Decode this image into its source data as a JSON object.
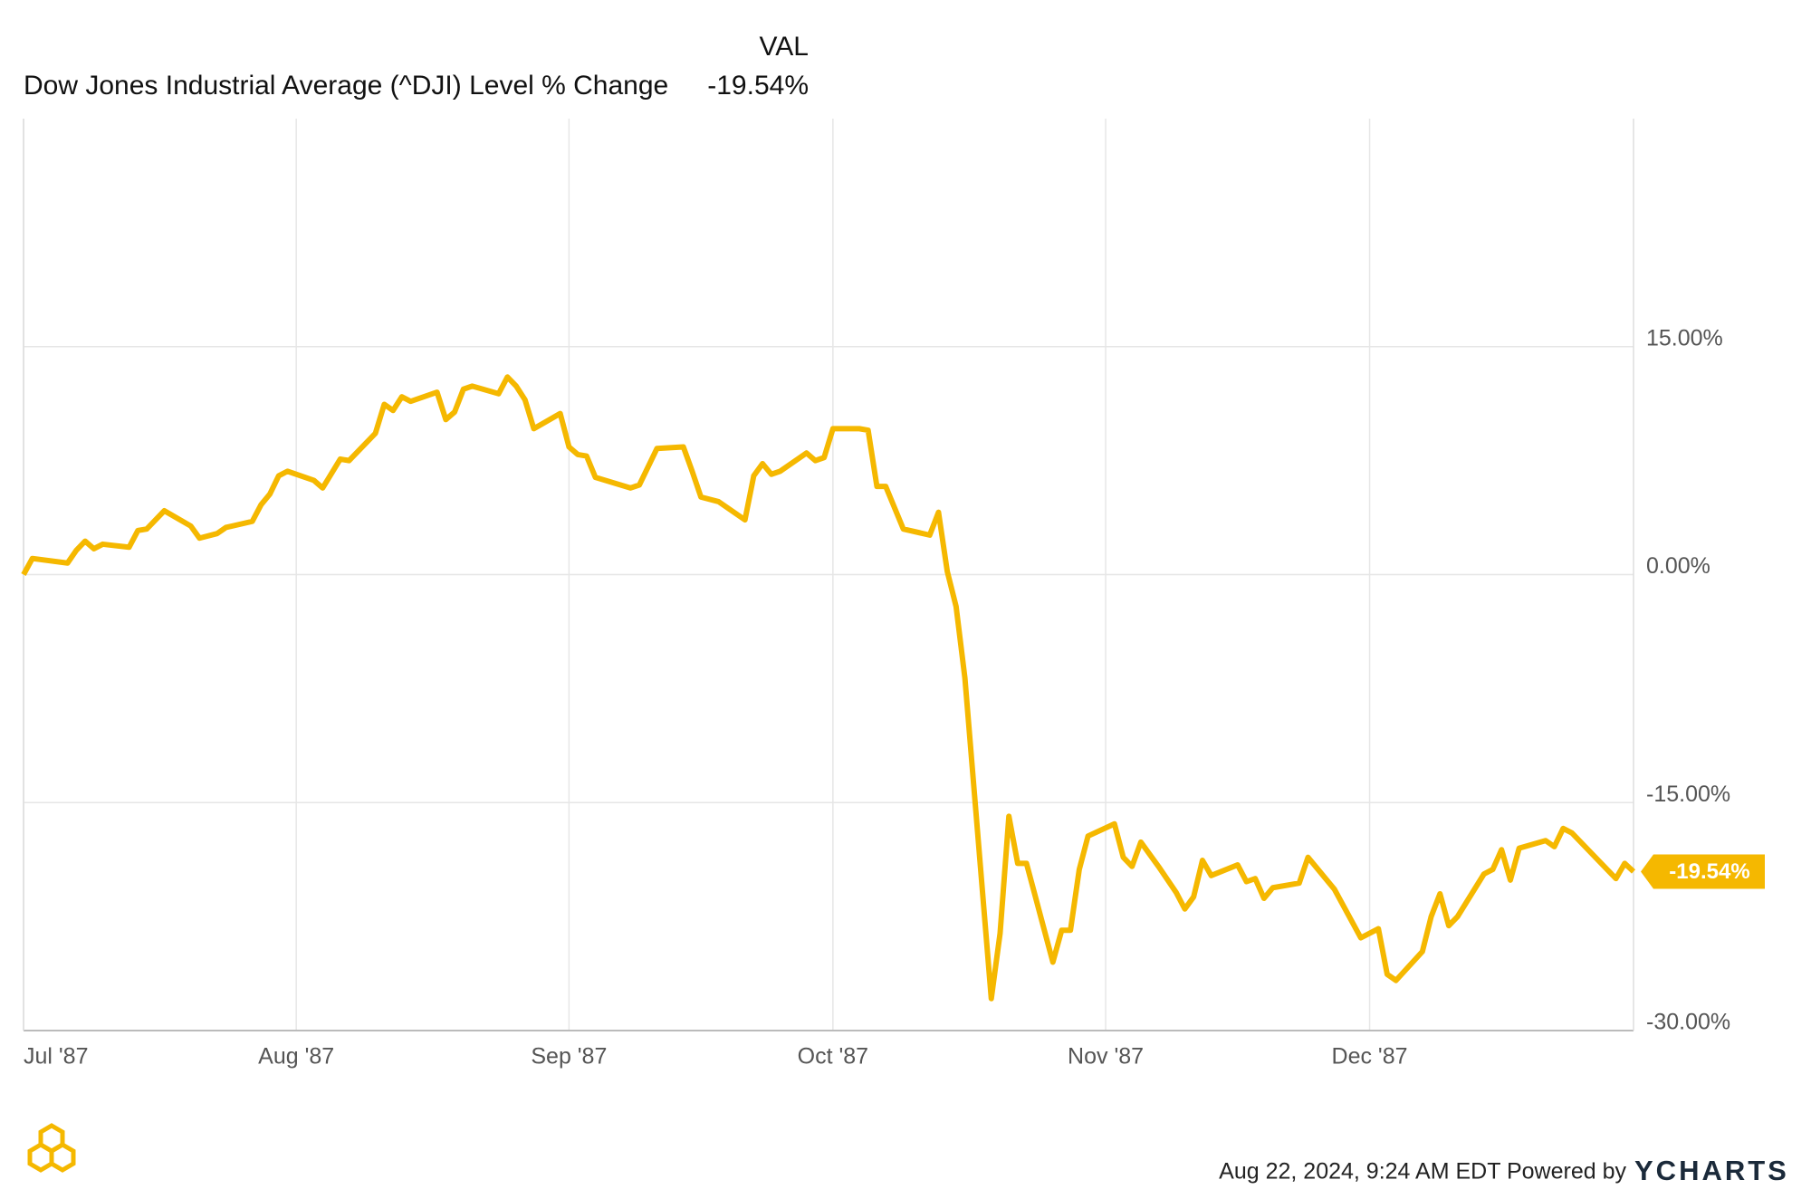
{
  "chart_data": {
    "type": "line",
    "title": "VAL",
    "xticks": [
      {
        "value": 0,
        "label": "Jul '87"
      },
      {
        "value": 31,
        "label": "Aug '87"
      },
      {
        "value": 62,
        "label": "Sep '87"
      },
      {
        "value": 92,
        "label": "Oct '87"
      },
      {
        "value": 123,
        "label": "Nov '87"
      },
      {
        "value": 153,
        "label": "Dec '87"
      }
    ],
    "xlim": [
      0,
      183
    ],
    "ylim": [
      -30,
      30
    ],
    "yticks": [
      {
        "value": -30,
        "label": "-30.00%"
      },
      {
        "value": -15,
        "label": "-15.00%"
      },
      {
        "value": 0,
        "label": "0.00%"
      },
      {
        "value": 15,
        "label": "15.00%"
      }
    ],
    "grid": true,
    "x": [
      0,
      1,
      5,
      6,
      7,
      8,
      9,
      12,
      13,
      14,
      16,
      19,
      20,
      22,
      23,
      26,
      27,
      28,
      29,
      30,
      33,
      34,
      36,
      37,
      40,
      41,
      42,
      43,
      44,
      47,
      48,
      49,
      50,
      51,
      54,
      55,
      56,
      57,
      58,
      61,
      62,
      63,
      64,
      65,
      69,
      70,
      72,
      75,
      76,
      77,
      79,
      82,
      83,
      84,
      85,
      86,
      89,
      90,
      91,
      92,
      95,
      96,
      97,
      98,
      100,
      103,
      104,
      105,
      106,
      107,
      110,
      111,
      112,
      113,
      114,
      117,
      118,
      119,
      120,
      121,
      124,
      125,
      126,
      127,
      129,
      131,
      132,
      133,
      134,
      135,
      138,
      139,
      140,
      141,
      142,
      145,
      146,
      149,
      152,
      154,
      155,
      156,
      159,
      160,
      161,
      162,
      163,
      166,
      167,
      168,
      169,
      170,
      173,
      174,
      175,
      176,
      181,
      182,
      183
    ],
    "series": [
      {
        "name": "Dow Jones Industrial Average (^DJI) Level % Change",
        "color": "#f5b800",
        "values": [
          0,
          1.06,
          0.76,
          1.6,
          2.2,
          1.7,
          2.0,
          1.8,
          2.9,
          3.0,
          4.2,
          3.2,
          2.4,
          2.7,
          3.1,
          3.5,
          4.6,
          5.3,
          6.5,
          6.8,
          6.2,
          5.7,
          7.6,
          7.5,
          9.3,
          11.2,
          10.8,
          11.7,
          11.4,
          12.0,
          10.2,
          10.7,
          12.2,
          12.4,
          11.9,
          13.0,
          12.4,
          11.5,
          9.6,
          10.6,
          8.4,
          7.9,
          7.8,
          6.4,
          5.7,
          5.9,
          8.3,
          8.4,
          6.8,
          5.1,
          4.8,
          3.6,
          6.5,
          7.3,
          6.6,
          6.8,
          8.0,
          7.5,
          7.7,
          9.6,
          9.6,
          9.5,
          5.8,
          5.8,
          3.0,
          2.6,
          4.1,
          0.2,
          -2.1,
          -6.8,
          -27.9,
          -23.6,
          -15.9,
          -19.0,
          -19.0,
          -25.5,
          -23.4,
          -23.4,
          -19.4,
          -17.2,
          -16.4,
          -18.6,
          -19.2,
          -17.6,
          -19.2,
          -20.9,
          -22.0,
          -21.2,
          -18.8,
          -19.8,
          -19.1,
          -20.2,
          -20.0,
          -21.3,
          -20.6,
          -20.3,
          -18.6,
          -20.7,
          -23.9,
          -23.3,
          -26.3,
          -26.7,
          -24.8,
          -22.5,
          -21.0,
          -23.1,
          -22.5,
          -19.7,
          -19.4,
          -18.1,
          -20.1,
          -18.0,
          -17.5,
          -17.9,
          -16.7,
          -17.0,
          -20.0,
          -19.0,
          -19.54
        ],
        "value_labels": [
          null,
          null,
          null,
          null,
          null,
          null,
          null,
          null,
          null,
          null,
          null,
          null,
          null,
          null,
          null,
          null,
          null,
          null,
          null,
          null,
          null,
          null,
          null,
          null,
          null,
          null,
          null,
          null,
          null,
          null,
          null,
          null,
          null,
          null,
          null,
          null,
          null,
          null,
          null,
          null,
          null,
          null,
          null,
          null,
          null,
          null,
          null,
          null,
          null,
          null,
          null,
          null,
          null,
          null,
          null,
          null,
          null,
          null,
          null,
          null,
          null,
          null,
          null,
          null,
          null,
          null,
          null,
          null,
          null,
          null,
          null,
          null,
          null,
          null,
          null,
          null,
          null,
          null,
          null,
          null,
          null,
          null,
          null,
          null,
          null,
          null,
          null,
          null,
          null,
          null,
          null,
          null,
          null,
          null,
          null,
          null,
          null,
          null,
          null,
          null,
          null,
          null,
          null,
          null,
          null,
          null,
          null,
          null,
          null,
          null,
          null,
          null,
          null,
          null,
          null,
          null,
          null,
          null,
          "-19.54%"
        ]
      }
    ]
  },
  "footer": {
    "timestamp": "Aug 22, 2024, 9:24 AM EDT Powered by",
    "brand": "YCHARTS"
  }
}
